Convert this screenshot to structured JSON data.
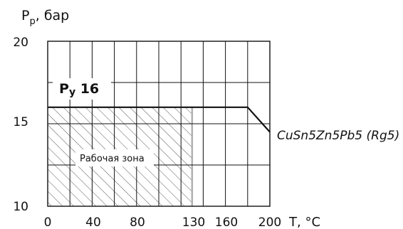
{
  "chart_data": {
    "type": "line",
    "ylabel": {
      "main": "P",
      "sub": "р",
      "rest": ", бар"
    },
    "xlabel": "T, °C",
    "xlim": [
      0,
      200
    ],
    "ylim": [
      10,
      20
    ],
    "x_ticks": [
      "0",
      "40",
      "80",
      "130",
      "160",
      "200"
    ],
    "y_ticks": [
      "20",
      "15",
      "10"
    ],
    "grid": true,
    "grid_x": [
      0,
      20,
      40,
      60,
      80,
      100,
      120,
      140,
      160,
      180,
      200
    ],
    "grid_y": [
      10,
      12.5,
      15,
      17.5,
      20
    ],
    "series": [
      {
        "name": "CuSn5Zn5Pb5 (Rg5)",
        "x": [
          0,
          180,
          200
        ],
        "y": [
          16,
          16,
          14.5
        ]
      }
    ],
    "annotations": {
      "pressure_class": {
        "main": "P",
        "sub": "y",
        "rest": " 16"
      },
      "zone": {
        "label": "Рабочая зона",
        "x_range": [
          0,
          130
        ],
        "y_range": [
          10,
          16
        ]
      }
    },
    "colors": {
      "line": "#111111",
      "hatch": "#444444",
      "zone_edge": "#b0b0b0"
    }
  }
}
